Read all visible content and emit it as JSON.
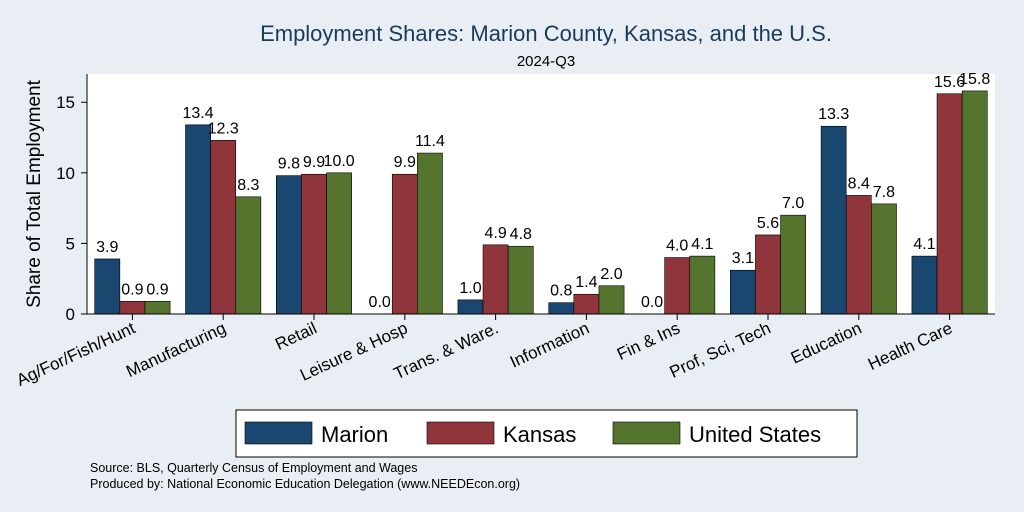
{
  "chart_data": {
    "type": "bar",
    "title": "Employment Shares: Marion County, Kansas, and the U.S.",
    "subtitle": "2024-Q3",
    "xlabel": "",
    "ylabel": "Share of Total Employment",
    "ylim": [
      0,
      17
    ],
    "yticks": [
      0,
      5,
      10,
      15
    ],
    "categories": [
      "Ag/For/Fish/Hunt",
      "Manufacturing",
      "Retail",
      "Leisure & Hosp",
      "Trans. & Ware.",
      "Information",
      "Fin & Ins",
      "Prof, Sci, Tech",
      "Education",
      "Health Care"
    ],
    "series": [
      {
        "name": "Marion",
        "color": "#1a476f",
        "values": [
          3.9,
          13.4,
          9.8,
          0.0,
          1.0,
          0.8,
          0.0,
          3.1,
          13.3,
          4.1
        ]
      },
      {
        "name": "Kansas",
        "color": "#90353b",
        "values": [
          0.9,
          12.3,
          9.9,
          9.9,
          4.9,
          1.4,
          4.0,
          5.6,
          8.4,
          15.6
        ]
      },
      {
        "name": "United States",
        "color": "#55752f",
        "values": [
          0.9,
          8.3,
          10.0,
          11.4,
          4.8,
          2.0,
          4.1,
          7.0,
          7.8,
          15.8
        ]
      }
    ],
    "legend_position": "bottom",
    "grid": false
  },
  "notes": {
    "source": "Source: BLS, Quarterly Census of Employment and Wages",
    "produced_by": "Produced by: National Economic Education Delegation (www.NEEDEcon.org)"
  }
}
